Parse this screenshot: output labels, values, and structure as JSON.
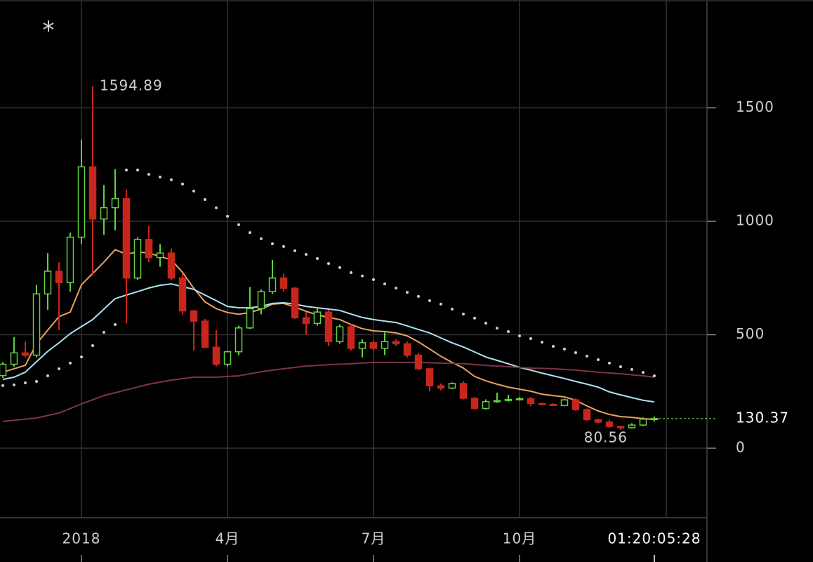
{
  "chart_data": {
    "type": "candlestick",
    "categories": [
      null,
      null,
      null,
      null,
      null,
      null,
      null,
      null,
      null,
      null,
      null,
      null,
      null,
      null,
      null,
      null,
      null,
      null,
      null,
      null,
      null,
      null,
      null,
      null,
      null,
      null,
      null,
      null,
      null,
      null,
      null,
      null,
      null,
      null,
      null,
      null,
      null,
      null,
      null,
      null,
      null,
      null,
      null,
      null,
      null,
      null,
      null,
      null,
      null,
      null,
      null,
      null,
      null,
      null,
      null,
      null,
      null,
      null,
      null
    ],
    "open": [
      320,
      370,
      420,
      410,
      680,
      780,
      730,
      930,
      1240,
      1010,
      1060,
      1100,
      750,
      920,
      840,
      860,
      750,
      605,
      560,
      445,
      370,
      425,
      530,
      615,
      690,
      750,
      705,
      575,
      550,
      600,
      470,
      535,
      440,
      465,
      440,
      470,
      460,
      410,
      350,
      275,
      265,
      285,
      220,
      175,
      205,
      210,
      215,
      218,
      197,
      193,
      188,
      213,
      170,
      126,
      115,
      96,
      90,
      102,
      128
    ],
    "high": [
      380,
      490,
      470,
      720,
      860,
      820,
      950,
      1360,
      1594.89,
      1160,
      1230,
      1140,
      930,
      980,
      900,
      880,
      770,
      610,
      570,
      520,
      430,
      540,
      710,
      700,
      830,
      770,
      710,
      600,
      620,
      610,
      545,
      545,
      480,
      475,
      510,
      480,
      470,
      420,
      355,
      285,
      290,
      295,
      225,
      215,
      245,
      235,
      225,
      225,
      200,
      198,
      218,
      220,
      175,
      130,
      125,
      100,
      110,
      135,
      140
    ],
    "low": [
      310,
      360,
      400,
      400,
      610,
      520,
      690,
      900,
      760,
      940,
      960,
      550,
      740,
      820,
      800,
      740,
      590,
      430,
      440,
      360,
      360,
      410,
      525,
      590,
      680,
      690,
      570,
      500,
      540,
      450,
      460,
      430,
      400,
      430,
      410,
      450,
      400,
      345,
      250,
      255,
      260,
      215,
      170,
      170,
      200,
      205,
      210,
      185,
      188,
      185,
      185,
      165,
      120,
      110,
      90,
      80.56,
      87,
      98,
      118
    ],
    "close": [
      370,
      420,
      410,
      680,
      780,
      730,
      930,
      1240,
      1010,
      1060,
      1100,
      750,
      920,
      840,
      860,
      750,
      605,
      560,
      445,
      370,
      425,
      530,
      615,
      690,
      750,
      705,
      575,
      550,
      600,
      470,
      535,
      440,
      465,
      440,
      470,
      460,
      410,
      350,
      275,
      265,
      285,
      220,
      175,
      205,
      210,
      215,
      218,
      197,
      193,
      188,
      213,
      170,
      126,
      115,
      96,
      90,
      102,
      128,
      130.37
    ],
    "up_color": "#62d13e",
    "down_color": "#c8261c",
    "overlays": [
      {
        "type": "line",
        "color": "#e8a263",
        "values": [
          335,
          350,
          365,
          460,
          520,
          580,
          600,
          720,
          770,
          820,
          875,
          855,
          865,
          860,
          845,
          830,
          775,
          705,
          645,
          615,
          598,
          590,
          598,
          613,
          635,
          638,
          622,
          603,
          588,
          576,
          567,
          545,
          527,
          517,
          514,
          508,
          495,
          468,
          437,
          405,
          378,
          353,
          316,
          297,
          282,
          269,
          260,
          251,
          238,
          232,
          226,
          211,
          186,
          164,
          149,
          139,
          136,
          130,
          127
        ]
      },
      {
        "type": "line",
        "color": "#a9e2f0",
        "values": [
          303,
          313,
          335,
          381,
          427,
          464,
          505,
          536,
          567,
          613,
          659,
          675,
          690,
          706,
          718,
          724,
          712,
          700,
          675,
          650,
          625,
          619,
          619,
          625,
          638,
          641,
          635,
          625,
          619,
          613,
          607,
          591,
          576,
          567,
          560,
          554,
          539,
          523,
          508,
          486,
          464,
          446,
          424,
          402,
          387,
          372,
          356,
          344,
          331,
          319,
          307,
          294,
          282,
          269,
          248,
          235,
          223,
          211,
          204
        ]
      },
      {
        "type": "line",
        "color": "#7e3446",
        "x": [
          0,
          3,
          5,
          7,
          9,
          11,
          13,
          15,
          17,
          19,
          21,
          23,
          25,
          27,
          29,
          31,
          33,
          35,
          37,
          39,
          41,
          43,
          45,
          47,
          49,
          51,
          53,
          55,
          57,
          58
        ],
        "values": [
          118,
          133,
          155,
          195,
          232,
          257,
          282,
          300,
          313,
          313,
          319,
          337,
          350,
          362,
          368,
          372,
          378,
          378,
          378,
          375,
          372,
          365,
          359,
          353,
          350,
          344,
          335,
          328,
          319,
          313
        ]
      },
      {
        "type": "dots",
        "color": "#d0d0d0",
        "values": [
          276,
          279,
          288,
          294,
          319,
          350,
          375,
          402,
          452,
          511,
          545,
          1226,
          1226,
          1207,
          1195,
          1183,
          1164,
          1133,
          1096,
          1059,
          1022,
          985,
          950,
          923,
          901,
          889,
          870,
          854,
          836,
          814,
          796,
          774,
          759,
          743,
          724,
          706,
          687,
          669,
          650,
          635,
          613,
          591,
          573,
          551,
          529,
          514,
          495,
          483,
          467,
          449,
          437,
          421,
          406,
          390,
          375,
          359,
          347,
          334,
          319
        ]
      }
    ],
    "annotations": [
      "1594.89",
      "80.56"
    ],
    "last_label": "130.37",
    "xlim": [
      -0.25,
      62.6875
    ],
    "xticks": [
      {
        "value": 7,
        "label": "2018"
      },
      {
        "value": 20,
        "label": "4月"
      },
      {
        "value": 33,
        "label": "7月"
      },
      {
        "value": 46,
        "label": "10月"
      },
      {
        "value": 58,
        "label": "01:20:05:28"
      }
    ],
    "ylim": [
      -306.5,
      1975.2
    ],
    "yticks": [
      0,
      500,
      1000,
      1500
    ],
    "grid": true
  }
}
